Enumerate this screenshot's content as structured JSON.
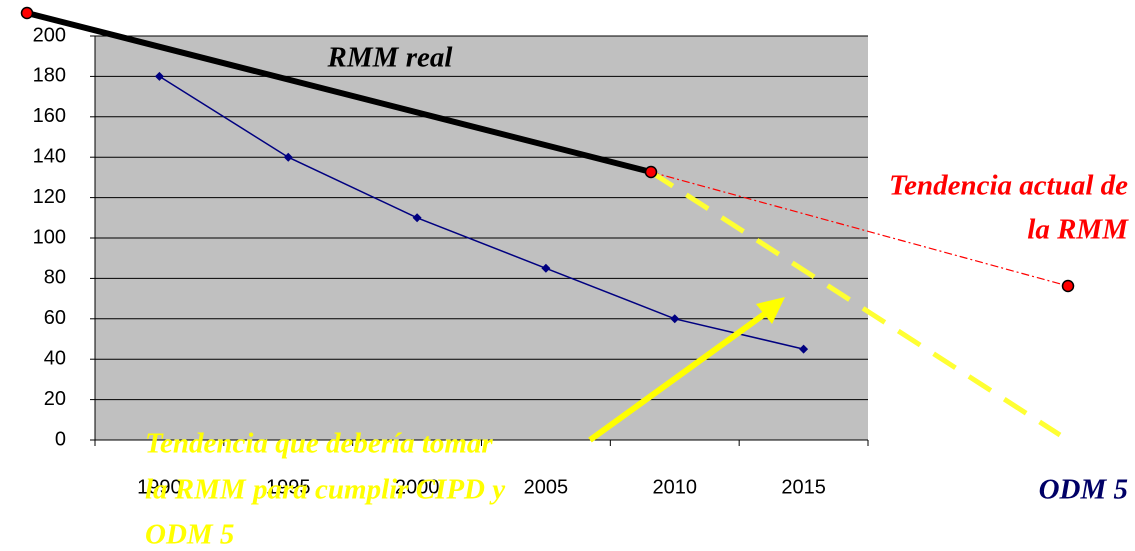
{
  "chart_data": {
    "type": "line",
    "categories": [
      "1990",
      "1995",
      "2000",
      "2005",
      "2010",
      "2015"
    ],
    "series": [
      {
        "color": "#000080",
        "values": [
          180,
          140,
          110,
          85,
          60,
          45
        ]
      }
    ],
    "ylim": [
      0,
      200
    ],
    "yticks": [
      0,
      20,
      40,
      60,
      80,
      100,
      120,
      140,
      160,
      180,
      200
    ],
    "grid": true,
    "annotations": {
      "rmm_real": "RMM real",
      "tendencia_actual": [
        "Tendencia actual de",
        "la RMM"
      ],
      "odm5": "ODM 5",
      "tendencia_deberia": [
        "Tendencia que debería tomar",
        "la RMM para cumplir CIPD y",
        "ODM 5"
      ]
    }
  }
}
